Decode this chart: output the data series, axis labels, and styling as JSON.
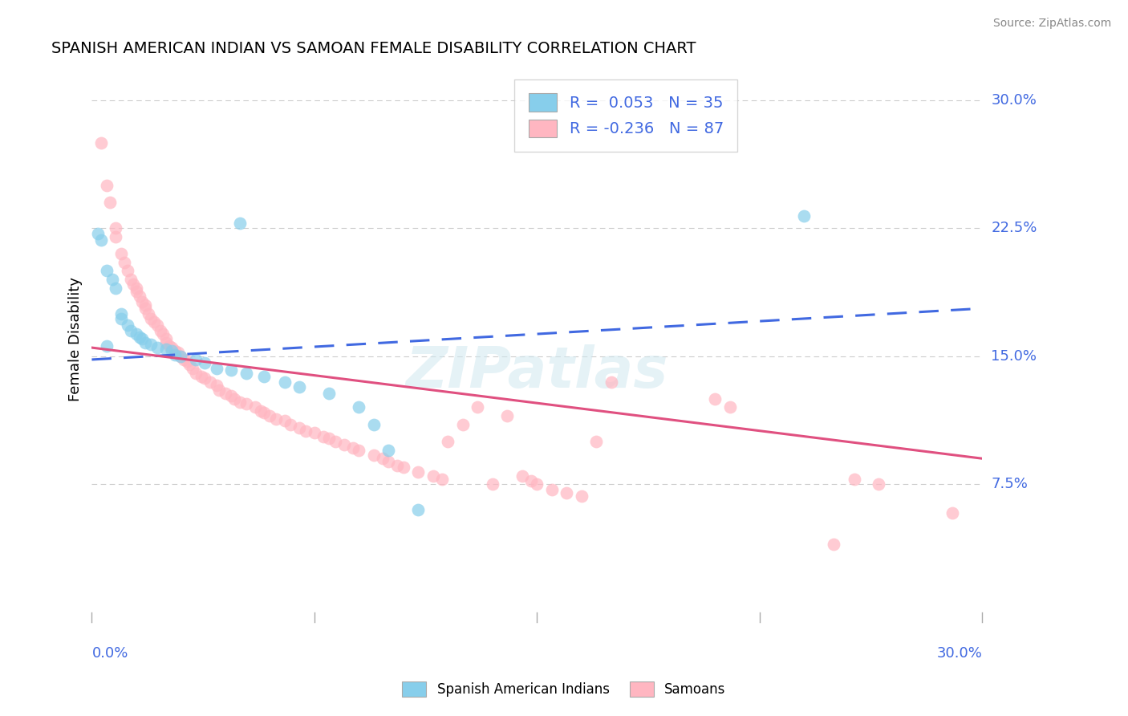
{
  "title": "SPANISH AMERICAN INDIAN VS SAMOAN FEMALE DISABILITY CORRELATION CHART",
  "source": "Source: ZipAtlas.com",
  "ylabel": "Female Disability",
  "xlim": [
    0.0,
    0.3
  ],
  "ylim": [
    0.0,
    0.32
  ],
  "yticks": [
    0.075,
    0.15,
    0.225,
    0.3
  ],
  "ytick_labels": [
    "7.5%",
    "15.0%",
    "22.5%",
    "30.0%"
  ],
  "xtick_labels": [
    "0.0%",
    "30.0%"
  ],
  "grid_color": "#cccccc",
  "background_color": "#ffffff",
  "watermark": "ZIPatlas",
  "blue_R": "0.053",
  "blue_N": "35",
  "pink_R": "-0.236",
  "pink_N": "87",
  "blue_scatter_color": "#87CEEB",
  "pink_scatter_color": "#FFB6C1",
  "blue_line_color": "#4169E1",
  "pink_line_color": "#E05080",
  "label_color": "#4169E1",
  "blue_line_x0": 0.0,
  "blue_line_y0": 0.148,
  "blue_line_x1": 0.3,
  "blue_line_y1": 0.178,
  "pink_line_x0": 0.0,
  "pink_line_y0": 0.155,
  "pink_line_x1": 0.3,
  "pink_line_y1": 0.09,
  "blue_x": [
    0.002,
    0.003,
    0.005,
    0.007,
    0.008,
    0.01,
    0.01,
    0.012,
    0.013,
    0.015,
    0.016,
    0.017,
    0.018,
    0.02,
    0.022,
    0.025,
    0.027,
    0.028,
    0.03,
    0.035,
    0.038,
    0.042,
    0.047,
    0.05,
    0.052,
    0.058,
    0.065,
    0.07,
    0.08,
    0.09,
    0.095,
    0.1,
    0.11,
    0.24,
    0.005
  ],
  "blue_y": [
    0.222,
    0.218,
    0.2,
    0.195,
    0.19,
    0.175,
    0.172,
    0.168,
    0.165,
    0.163,
    0.161,
    0.16,
    0.158,
    0.157,
    0.155,
    0.154,
    0.153,
    0.151,
    0.15,
    0.148,
    0.146,
    0.143,
    0.142,
    0.228,
    0.14,
    0.138,
    0.135,
    0.132,
    0.128,
    0.12,
    0.11,
    0.095,
    0.06,
    0.232,
    0.156
  ],
  "pink_x": [
    0.003,
    0.005,
    0.006,
    0.008,
    0.008,
    0.01,
    0.011,
    0.012,
    0.013,
    0.014,
    0.015,
    0.015,
    0.016,
    0.017,
    0.018,
    0.018,
    0.019,
    0.02,
    0.021,
    0.022,
    0.023,
    0.024,
    0.025,
    0.025,
    0.026,
    0.027,
    0.028,
    0.029,
    0.03,
    0.031,
    0.032,
    0.033,
    0.034,
    0.035,
    0.037,
    0.038,
    0.04,
    0.042,
    0.043,
    0.045,
    0.047,
    0.048,
    0.05,
    0.052,
    0.055,
    0.057,
    0.058,
    0.06,
    0.062,
    0.065,
    0.067,
    0.07,
    0.072,
    0.075,
    0.078,
    0.08,
    0.082,
    0.085,
    0.088,
    0.09,
    0.095,
    0.098,
    0.1,
    0.103,
    0.105,
    0.11,
    0.115,
    0.118,
    0.12,
    0.125,
    0.13,
    0.135,
    0.14,
    0.145,
    0.148,
    0.15,
    0.155,
    0.16,
    0.165,
    0.17,
    0.175,
    0.21,
    0.215,
    0.25,
    0.257,
    0.265,
    0.29
  ],
  "pink_y": [
    0.275,
    0.25,
    0.24,
    0.225,
    0.22,
    0.21,
    0.205,
    0.2,
    0.195,
    0.192,
    0.19,
    0.188,
    0.185,
    0.182,
    0.18,
    0.178,
    0.175,
    0.172,
    0.17,
    0.168,
    0.165,
    0.163,
    0.16,
    0.158,
    0.156,
    0.155,
    0.153,
    0.152,
    0.15,
    0.148,
    0.147,
    0.145,
    0.143,
    0.14,
    0.138,
    0.137,
    0.135,
    0.133,
    0.13,
    0.128,
    0.127,
    0.125,
    0.123,
    0.122,
    0.12,
    0.118,
    0.117,
    0.115,
    0.113,
    0.112,
    0.11,
    0.108,
    0.106,
    0.105,
    0.103,
    0.102,
    0.1,
    0.098,
    0.096,
    0.095,
    0.092,
    0.09,
    0.088,
    0.086,
    0.085,
    0.082,
    0.08,
    0.078,
    0.1,
    0.11,
    0.12,
    0.075,
    0.115,
    0.08,
    0.077,
    0.075,
    0.072,
    0.07,
    0.068,
    0.1,
    0.135,
    0.125,
    0.12,
    0.04,
    0.078,
    0.075,
    0.058
  ]
}
